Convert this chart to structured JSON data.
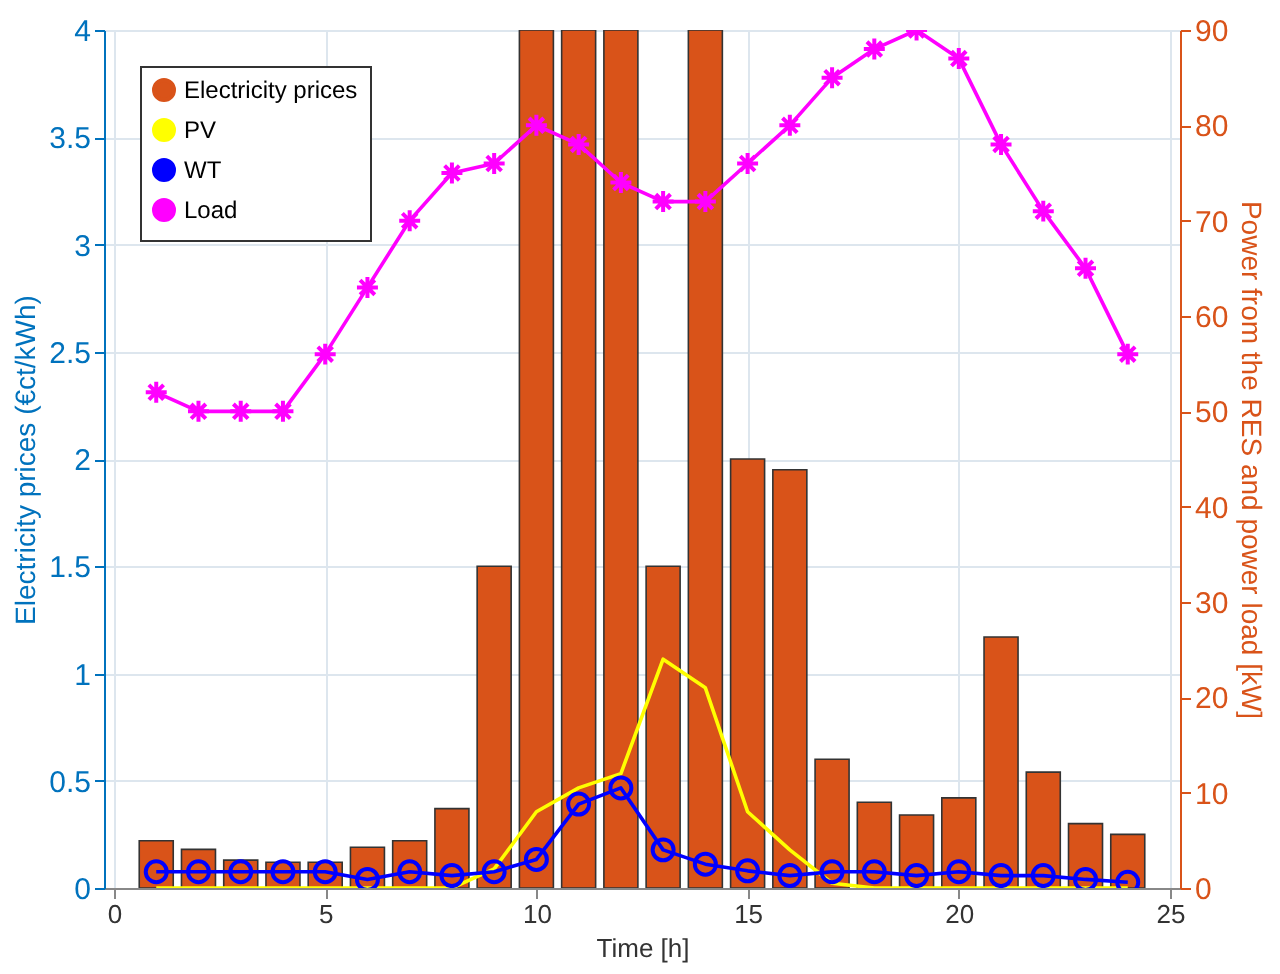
{
  "chart_data": {
    "type": "bar",
    "xlabel": "Time [h]",
    "ylabel": "Electricity prices (€ct/kWh)",
    "y2label": "Power from the RES and power load [kW]",
    "x": [
      1,
      2,
      3,
      4,
      5,
      6,
      7,
      8,
      9,
      10,
      11,
      12,
      13,
      14,
      15,
      16,
      17,
      18,
      19,
      20,
      21,
      22,
      23,
      24
    ],
    "series": [
      {
        "name": "Electricity prices",
        "type": "bar",
        "color": "#d95319",
        "values": [
          0.22,
          0.18,
          0.13,
          0.12,
          0.12,
          0.19,
          0.22,
          0.37,
          1.5,
          4,
          4,
          4,
          1.5,
          4,
          2.0,
          1.95,
          0.6,
          0.4,
          0.34,
          0.42,
          1.17,
          0.54,
          0.3,
          0.25
        ]
      },
      {
        "name": "PV",
        "type": "line",
        "axis": "y2",
        "color": "#ffff00",
        "marker": "none",
        "values": [
          0,
          0,
          0,
          0,
          0,
          0,
          0,
          0,
          2,
          8,
          10.5,
          12,
          24,
          21,
          8,
          4,
          0.5,
          0,
          0,
          0,
          0,
          0,
          0,
          0
        ]
      },
      {
        "name": "WT",
        "type": "line",
        "axis": "y2",
        "color": "#0000ff",
        "marker": "circle",
        "values": [
          1.7,
          1.7,
          1.7,
          1.7,
          1.7,
          0.9,
          1.7,
          1.3,
          1.7,
          3,
          8.8,
          10.5,
          4,
          2.5,
          1.8,
          1.3,
          1.7,
          1.7,
          1.3,
          1.7,
          1.3,
          1.3,
          0.9,
          0.6
        ]
      },
      {
        "name": "Load",
        "type": "line",
        "axis": "y2",
        "color": "#ff00ff",
        "marker": "cross",
        "values": [
          52,
          50,
          50,
          50,
          56,
          63,
          70,
          75,
          76,
          80,
          78,
          74,
          72,
          72,
          76,
          80,
          85,
          88,
          90,
          87,
          78,
          71,
          65,
          56
        ]
      }
    ],
    "xlim": [
      0,
      25
    ],
    "xticks": [
      0,
      5,
      10,
      15,
      20,
      25
    ],
    "ylim": [
      0,
      4
    ],
    "yticks": [
      0,
      0.5,
      1,
      1.5,
      2,
      2.5,
      3,
      3.5,
      4
    ],
    "y2lim": [
      0,
      90
    ],
    "y2ticks": [
      0,
      10,
      20,
      30,
      40,
      50,
      60,
      70,
      80,
      90
    ],
    "grid": true,
    "legend": "top left"
  }
}
